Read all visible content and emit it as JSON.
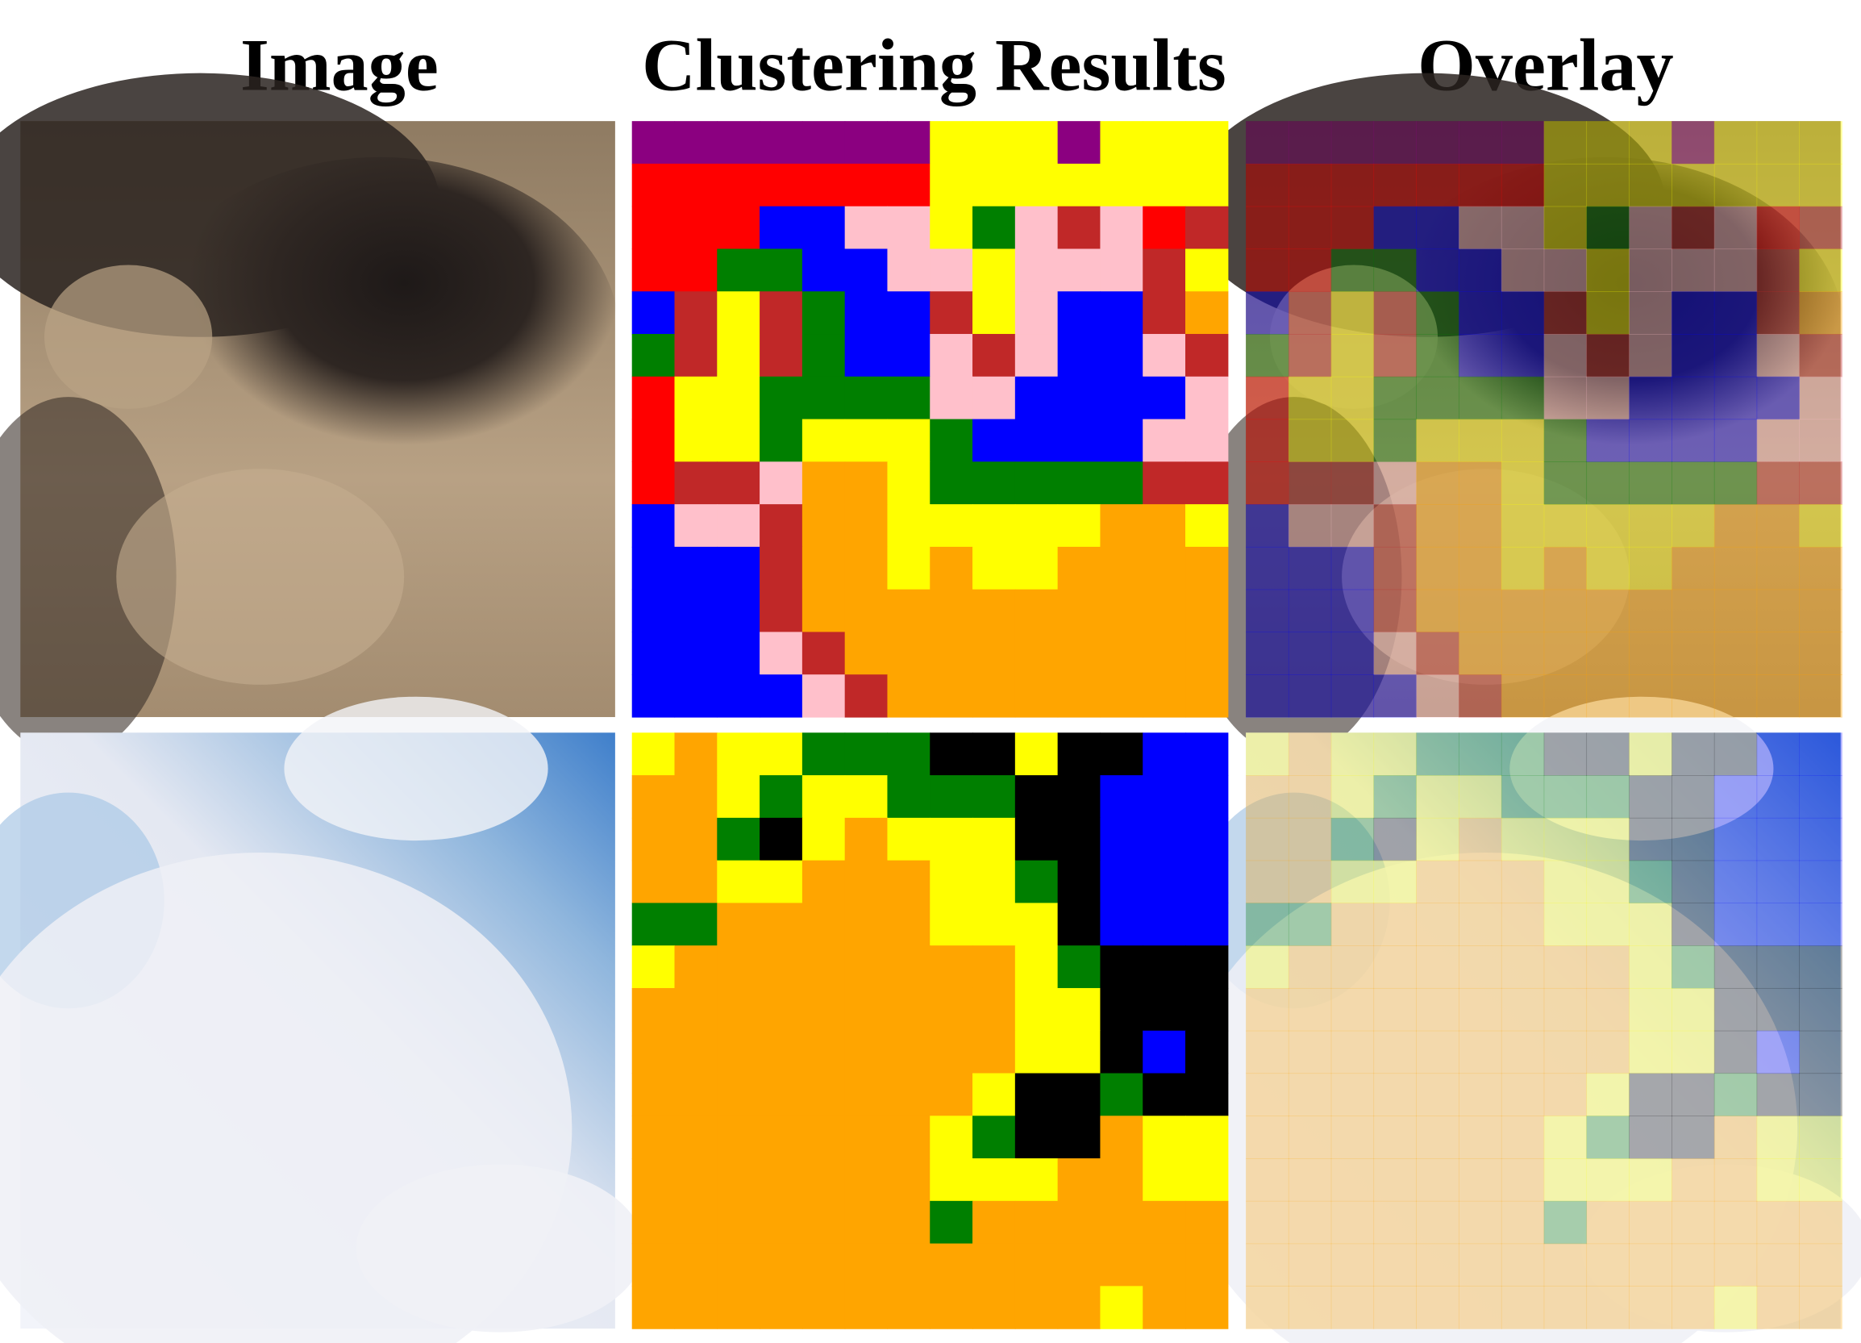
{
  "headers": [
    "Image",
    "Clustering Results",
    "Overlay"
  ]
}
